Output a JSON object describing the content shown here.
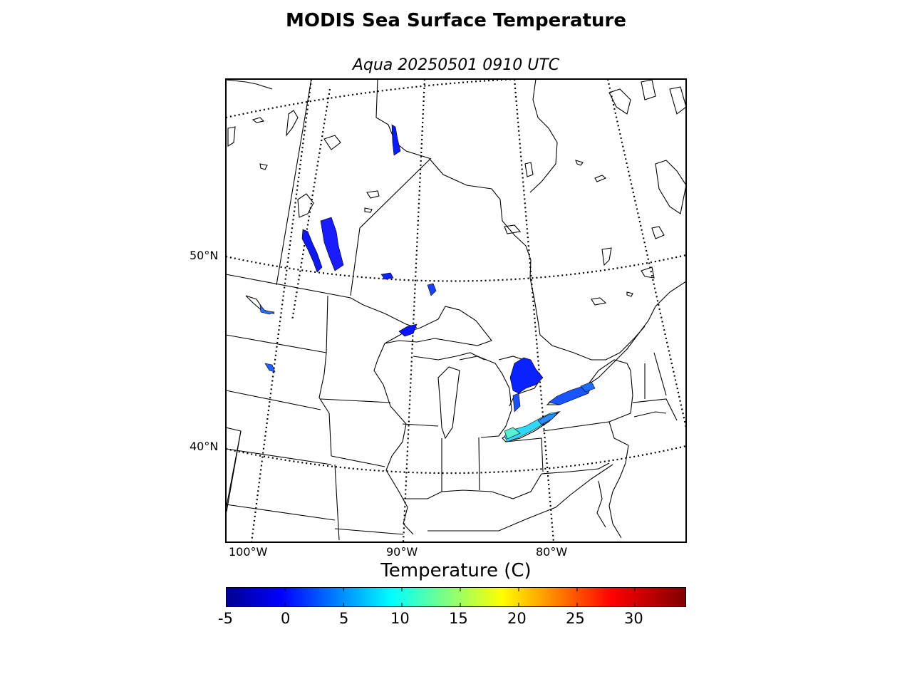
{
  "header": {
    "title": "MODIS Sea Surface Temperature",
    "subtitle": "Aqua 20250501 0910 UTC"
  },
  "map": {
    "latitude_labels": [
      "50°N",
      "40°N"
    ],
    "longitude_labels": [
      "100°W",
      "90°W",
      "80°W"
    ],
    "graticule": "dotted",
    "sst_colors": {
      "cold": "#0a20ff",
      "cool": "#1f6cff",
      "mild": "#2ed0ff",
      "warm": "#4ee8c8"
    }
  },
  "colorbar": {
    "title": "Temperature (C)",
    "tick_labels": [
      "-5",
      "0",
      "5",
      "10",
      "15",
      "20",
      "25",
      "30"
    ],
    "range": [
      -5,
      34.5
    ],
    "colormap": "jet"
  }
}
